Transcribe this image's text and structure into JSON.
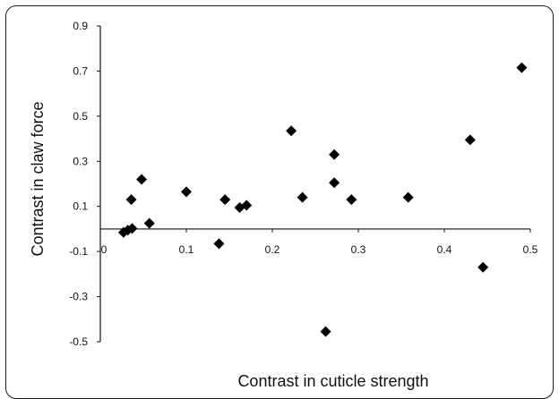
{
  "chart_data": {
    "type": "scatter",
    "xlabel": "Contrast in cuticle strength",
    "ylabel": "Contrast in claw force",
    "xlim": [
      0,
      0.5
    ],
    "ylim": [
      -0.5,
      0.9
    ],
    "x_ticks": [
      "0",
      "0.1",
      "0.2",
      "0.3",
      "0.4",
      "0.5"
    ],
    "y_ticks": [
      "-0.5",
      "-0.3",
      "-0.1",
      "0.1",
      "0.3",
      "0.5",
      "0.7",
      "0.9"
    ],
    "grid": false,
    "marker": "diamond",
    "marker_color": "#000000",
    "points": [
      {
        "x": 0.027,
        "y": -0.015
      },
      {
        "x": 0.032,
        "y": -0.005
      },
      {
        "x": 0.037,
        "y": 0.002
      },
      {
        "x": 0.036,
        "y": 0.13
      },
      {
        "x": 0.048,
        "y": 0.22
      },
      {
        "x": 0.057,
        "y": 0.025
      },
      {
        "x": 0.1,
        "y": 0.165
      },
      {
        "x": 0.138,
        "y": -0.065
      },
      {
        "x": 0.145,
        "y": 0.13
      },
      {
        "x": 0.162,
        "y": 0.095
      },
      {
        "x": 0.17,
        "y": 0.105
      },
      {
        "x": 0.222,
        "y": 0.435
      },
      {
        "x": 0.235,
        "y": 0.14
      },
      {
        "x": 0.262,
        "y": -0.455
      },
      {
        "x": 0.272,
        "y": 0.33
      },
      {
        "x": 0.272,
        "y": 0.205
      },
      {
        "x": 0.292,
        "y": 0.13
      },
      {
        "x": 0.358,
        "y": 0.14
      },
      {
        "x": 0.43,
        "y": 0.395
      },
      {
        "x": 0.445,
        "y": -0.17
      },
      {
        "x": 0.49,
        "y": 0.715
      }
    ]
  }
}
